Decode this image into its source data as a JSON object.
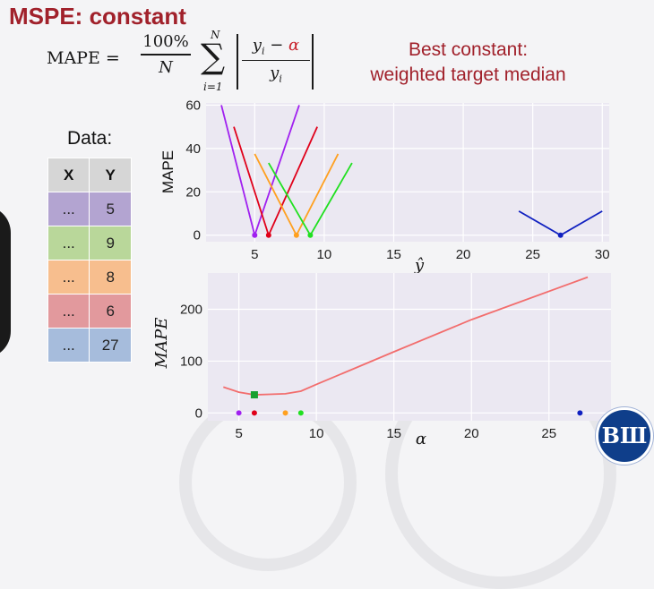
{
  "slide": {
    "title": "MSPE: constant",
    "formula": {
      "lhs": "MAPE =",
      "frac_num": "100%",
      "frac_den": "N",
      "sum_upper": "N",
      "sum_lower": "i=1",
      "abs_num_left": "y",
      "abs_num_sub": "i",
      "abs_num_minus": " − ",
      "abs_num_alpha": "α",
      "abs_den": "y",
      "abs_den_sub": "i"
    },
    "best_line1": "Best constant:",
    "best_line2": "weighted target median",
    "logo_text": "ВШ"
  },
  "data_table": {
    "label": "Data:",
    "headers": [
      "X",
      "Y"
    ],
    "rows": [
      {
        "x": "...",
        "y": "5",
        "color": "#b3a4d1"
      },
      {
        "x": "...",
        "y": "9",
        "color": "#b9d79a"
      },
      {
        "x": "...",
        "y": "8",
        "color": "#f7be8e"
      },
      {
        "x": "...",
        "y": "6",
        "color": "#e2999d"
      },
      {
        "x": "...",
        "y": "27",
        "color": "#a6bcdc"
      }
    ]
  },
  "chart_data": [
    {
      "type": "line",
      "ylabel": "MAPE",
      "xlabel": "ŷ",
      "xlim": [
        1.5,
        30.5
      ],
      "ylim": [
        -3,
        61
      ],
      "xticks": [
        5,
        10,
        15,
        20,
        25,
        30
      ],
      "yticks": [
        0,
        20,
        40,
        60
      ],
      "grid": true,
      "series": [
        {
          "color": "#a020f0",
          "x": [
            2.6,
            5,
            8.2
          ],
          "y": [
            60,
            0,
            60
          ]
        },
        {
          "color": "#e0001a",
          "x": [
            3.5,
            6,
            9.5
          ],
          "y": [
            50,
            0,
            50
          ]
        },
        {
          "color": "#ffa020",
          "x": [
            5,
            8,
            11
          ],
          "y": [
            37.5,
            0,
            37.5
          ]
        },
        {
          "color": "#20e020",
          "x": [
            6,
            9,
            12
          ],
          "y": [
            33.3,
            0,
            33.3
          ]
        },
        {
          "color": "#1020c0",
          "x": [
            24,
            27,
            30
          ],
          "y": [
            11.1,
            0,
            11.1
          ]
        }
      ],
      "points": [
        {
          "x": 5,
          "y": 0,
          "color": "#a020f0"
        },
        {
          "x": 6,
          "y": 0,
          "color": "#e0001a"
        },
        {
          "x": 8,
          "y": 0,
          "color": "#ffa020"
        },
        {
          "x": 9,
          "y": 0,
          "color": "#20e020"
        },
        {
          "x": 27,
          "y": 0,
          "color": "#1020c0"
        }
      ]
    },
    {
      "type": "line",
      "ylabel": "MAPE",
      "xlabel": "α",
      "xlim": [
        3,
        29
      ],
      "ylim": [
        -15,
        270
      ],
      "xticks": [
        5,
        10,
        15,
        20,
        25
      ],
      "yticks": [
        0,
        100,
        200
      ],
      "grid": true,
      "series": [
        {
          "color": "#f26d6d",
          "x": [
            4,
            5,
            6,
            7,
            8,
            9,
            10,
            15,
            20,
            27.5
          ],
          "y": [
            50,
            40,
            35,
            36,
            37,
            42,
            55,
            118,
            180,
            262
          ]
        }
      ],
      "min_marker": {
        "x": 6,
        "y": 35,
        "color": "#18a030"
      },
      "points": [
        {
          "x": 5,
          "y": 0,
          "color": "#a020f0"
        },
        {
          "x": 6,
          "y": 0,
          "color": "#e0001a"
        },
        {
          "x": 8,
          "y": 0,
          "color": "#ffa020"
        },
        {
          "x": 9,
          "y": 0,
          "color": "#20e020"
        },
        {
          "x": 27,
          "y": 0,
          "color": "#1020c0"
        }
      ]
    }
  ]
}
